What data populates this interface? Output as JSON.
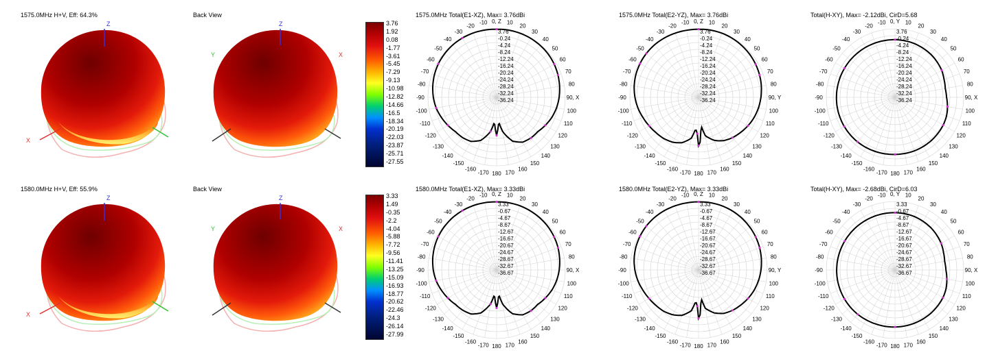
{
  "rows": [
    {
      "front_title": "1575.0MHz H+V, Eff: 64.3%",
      "back_title": "Back View",
      "axis_labels": {
        "x": "X",
        "y": "Y",
        "z": "Z"
      },
      "colorbar_ticks": [
        "3.76",
        "1.92",
        "0.08",
        "-1.77",
        "-3.61",
        "-5.45",
        "-7.29",
        "-9.13",
        "-10.98",
        "-12.82",
        "-14.66",
        "-16.5",
        "-18.34",
        "-20.19",
        "-22.03",
        "-23.87",
        "-25.71",
        "-27.55"
      ],
      "polars": [
        {
          "title": "1575.0MHz Total(E1-XZ), Max= 3.76dBi",
          "max_value": 3.76,
          "ring_labels": [
            "3.76",
            "-0.24",
            "-4.24",
            "-8.24",
            "-12.24",
            "-16.24",
            "-20.24",
            "-24.24",
            "-28.24",
            "-32.24",
            "-36.24"
          ],
          "angle_labels": {
            "0": "0, Z",
            "10": "10",
            "20": "20",
            "30": "30",
            "40": "40",
            "50": "50",
            "60": "60",
            "70": "70",
            "80": "80",
            "90": "90, X",
            "100": "100",
            "110": "110",
            "120": "120",
            "130": "130",
            "140": "140",
            "150": "150",
            "160": "160",
            "170": "170",
            "180": "180",
            "-170": "-170",
            "-160": "-160",
            "-150": "-150",
            "-140": "-140",
            "-130": "-130",
            "-120": "-120",
            "-110": "-110",
            "-100": "-100",
            "-90": "-90",
            "-80": "-80",
            "-70": "-70",
            "-60": "-60",
            "-50": "-50",
            "-40": "-40",
            "-30": "-30",
            "-20": "-20",
            "-10": "-10"
          }
        },
        {
          "title": "1575.0MHz Total(E2-YZ), Max= 3.76dBi",
          "max_value": 3.76,
          "ring_labels": [
            "3.76",
            "-0.24",
            "-4.24",
            "-8.24",
            "-12.24",
            "-16.24",
            "-20.24",
            "-24.24",
            "-28.24",
            "-32.24",
            "-36.24"
          ],
          "angle_labels": {
            "0": "0, Z",
            "10": "10",
            "20": "20",
            "30": "30",
            "40": "40",
            "50": "50",
            "60": "60",
            "70": "70",
            "80": "80",
            "90": "90, Y",
            "100": "100",
            "110": "110",
            "120": "120",
            "130": "130",
            "140": "140",
            "150": "150",
            "160": "160",
            "170": "170",
            "180": "180",
            "-170": "-170",
            "-160": "-160",
            "-150": "-150",
            "-140": "-140",
            "-130": "-130",
            "-120": "-120",
            "-110": "-110",
            "-100": "-100",
            "-90": "-90",
            "-80": "-80",
            "-70": "-70",
            "-60": "-60",
            "-50": "-50",
            "-40": "-40",
            "-30": "-30",
            "-20": "-20",
            "-10": "-10"
          }
        },
        {
          "title": "Total(H-XY), Max= -2.12dBi, CirD=5.68",
          "max_value": -2.12,
          "ring_labels": [
            "3.76",
            "-0.24",
            "-4.24",
            "-8.24",
            "-12.24",
            "-16.24",
            "-20.24",
            "-24.24",
            "-28.24",
            "-32.24",
            "-36.24"
          ],
          "angle_labels": {
            "0": "0, Y",
            "10": "10",
            "20": "20",
            "30": "30",
            "40": "40",
            "50": "50",
            "60": "60",
            "70": "70",
            "80": "80",
            "90": "90, X",
            "100": "100",
            "110": "110",
            "120": "120",
            "130": "130",
            "140": "140",
            "150": "150",
            "160": "160",
            "170": "170",
            "180": "180",
            "-170": "-170",
            "-160": "-160",
            "-150": "-150",
            "-140": "-140",
            "-130": "-130",
            "-120": "-120",
            "-110": "-110",
            "-100": "-100",
            "-90": "-90",
            "-80": "-80",
            "-70": "-70",
            "-60": "-60",
            "-50": "-50",
            "-40": "-40",
            "-30": "-30",
            "-20": "-20",
            "-10": "-10"
          }
        }
      ]
    },
    {
      "front_title": "1580.0MHz H+V, Eff: 55.9%",
      "back_title": "Back View",
      "axis_labels": {
        "x": "X",
        "y": "Y",
        "z": "Z"
      },
      "colorbar_ticks": [
        "3.33",
        "1.49",
        "-0.35",
        "-2.2",
        "-4.04",
        "-5.88",
        "-7.72",
        "-9.56",
        "-11.41",
        "-13.25",
        "-15.09",
        "-16.93",
        "-18.77",
        "-20.62",
        "-22.46",
        "-24.3",
        "-26.14",
        "-27.99"
      ],
      "polars": [
        {
          "title": "1580.0MHz Total(E1-XZ), Max= 3.33dBi",
          "max_value": 3.33,
          "ring_labels": [
            "3.33",
            "-0.67",
            "-4.67",
            "-8.67",
            "-12.67",
            "-16.67",
            "-20.67",
            "-24.67",
            "-28.67",
            "-32.67",
            "-36.67"
          ],
          "angle_labels": {
            "0": "0, Z",
            "10": "10",
            "20": "20",
            "30": "30",
            "40": "40",
            "50": "50",
            "60": "60",
            "70": "70",
            "80": "80",
            "90": "90, X",
            "100": "100",
            "110": "110",
            "120": "120",
            "130": "130",
            "140": "140",
            "150": "150",
            "160": "160",
            "170": "170",
            "180": "180",
            "-170": "-170",
            "-160": "-160",
            "-150": "-150",
            "-140": "-140",
            "-130": "-130",
            "-120": "-120",
            "-110": "-110",
            "-100": "-100",
            "-90": "-90",
            "-80": "-80",
            "-70": "-70",
            "-60": "-60",
            "-50": "-50",
            "-40": "-40",
            "-30": "-30",
            "-20": "-20",
            "-10": "-10"
          }
        },
        {
          "title": "1580.0MHz Total(E2-YZ), Max= 3.33dBi",
          "max_value": 3.33,
          "ring_labels": [
            "3.33",
            "-0.67",
            "-4.67",
            "-8.67",
            "-12.67",
            "-16.67",
            "-20.67",
            "-24.67",
            "-28.67",
            "-32.67",
            "-36.67"
          ],
          "angle_labels": {
            "0": "0, Z",
            "10": "10",
            "20": "20",
            "30": "30",
            "40": "40",
            "50": "50",
            "60": "60",
            "70": "70",
            "80": "80",
            "90": "90, Y",
            "100": "100",
            "110": "110",
            "120": "120",
            "130": "130",
            "140": "140",
            "150": "150",
            "160": "160",
            "170": "170",
            "180": "180",
            "-170": "-170",
            "-160": "-160",
            "-150": "-150",
            "-140": "-140",
            "-130": "-130",
            "-120": "-120",
            "-110": "-110",
            "-100": "-100",
            "-90": "-90",
            "-80": "-80",
            "-70": "-70",
            "-60": "-60",
            "-50": "-50",
            "-40": "-40",
            "-30": "-30",
            "-20": "-20",
            "-10": "-10"
          }
        },
        {
          "title": "Total(H-XY), Max= -2.68dBi, CirD=6.03",
          "max_value": -2.68,
          "ring_labels": [
            "3.33",
            "-0.67",
            "-4.67",
            "-8.67",
            "-12.67",
            "-16.67",
            "-20.67",
            "-24.67",
            "-28.67",
            "-32.67",
            "-36.67"
          ],
          "angle_labels": {
            "0": "0, Y",
            "10": "10",
            "20": "20",
            "30": "30",
            "40": "40",
            "50": "50",
            "60": "60",
            "70": "70",
            "80": "80",
            "90": "90, X",
            "100": "100",
            "110": "110",
            "120": "120",
            "130": "130",
            "140": "140",
            "150": "150",
            "160": "160",
            "170": "170",
            "180": "180",
            "-170": "-170",
            "-160": "-160",
            "-150": "-150",
            "-140": "-140",
            "-130": "-130",
            "-120": "-120",
            "-110": "-110",
            "-100": "-100",
            "-90": "-90",
            "-80": "-80",
            "-70": "-70",
            "-60": "-60",
            "-50": "-50",
            "-40": "-40",
            "-30": "-30",
            "-20": "-20",
            "-10": "-10"
          }
        }
      ]
    }
  ],
  "chart_data": [
    {
      "type": "line",
      "title": "1575.0MHz Total(E1-XZ), Max= 3.76dBi",
      "coordinate_system": "polar",
      "r_range": [
        -36.24,
        3.76
      ],
      "series": [
        {
          "angles_deg": [
            0,
            10,
            20,
            30,
            40,
            50,
            60,
            70,
            80,
            90,
            100,
            110,
            120,
            130,
            140,
            150,
            160,
            170,
            175,
            180,
            185,
            190,
            200,
            210,
            220,
            230,
            240,
            250,
            260,
            270,
            280,
            290,
            300,
            310,
            320,
            330,
            340,
            350
          ],
          "values_dbi": [
            3.5,
            3.6,
            3.6,
            3.5,
            3.3,
            3.0,
            2.5,
            1.8,
            1.0,
            0.2,
            -0.8,
            -2.0,
            -3.5,
            -5.0,
            -5.2,
            -6.0,
            -9.0,
            -16.0,
            -22.0,
            -14.0,
            -22.0,
            -16.0,
            -9.5,
            -6.5,
            -5.5,
            -5.0,
            -3.5,
            -2.0,
            -0.5,
            0.6,
            1.5,
            2.3,
            2.9,
            3.3,
            3.6,
            3.7,
            3.7,
            3.6
          ]
        }
      ]
    },
    {
      "type": "line",
      "title": "1575.0MHz Total(E2-YZ), Max= 3.76dBi",
      "coordinate_system": "polar",
      "r_range": [
        -36.24,
        3.76
      ],
      "series": [
        {
          "angles_deg": [
            0,
            10,
            20,
            30,
            40,
            50,
            60,
            70,
            80,
            90,
            100,
            110,
            120,
            130,
            140,
            150,
            160,
            170,
            175,
            178,
            180,
            182,
            185,
            190,
            200,
            210,
            220,
            230,
            240,
            250,
            260,
            270,
            280,
            290,
            300,
            310,
            320,
            330,
            340,
            350
          ],
          "values_dbi": [
            3.5,
            3.6,
            3.6,
            3.4,
            3.1,
            2.7,
            2.2,
            1.6,
            0.9,
            0.1,
            -0.8,
            -1.8,
            -3.0,
            -4.3,
            -5.5,
            -7.0,
            -9.5,
            -13.5,
            -20.0,
            -10.0,
            -8.0,
            -15.0,
            -18.0,
            -12.0,
            -8.0,
            -6.0,
            -4.8,
            -4.0,
            -3.0,
            -1.8,
            -0.4,
            0.8,
            1.8,
            2.6,
            3.1,
            3.5,
            3.7,
            3.7,
            3.6,
            3.5
          ]
        }
      ]
    },
    {
      "type": "line",
      "title": "Total(H-XY), Max= -2.12dBi, CirD=5.68",
      "coordinate_system": "polar",
      "r_range": [
        -36.24,
        3.76
      ],
      "series": [
        {
          "angles_deg": [
            0,
            20,
            40,
            60,
            70,
            80,
            90,
            100,
            110,
            120,
            140,
            160,
            180,
            200,
            220,
            240,
            260,
            280,
            300,
            320,
            340
          ],
          "values_dbi": [
            -2.6,
            -2.9,
            -3.6,
            -4.8,
            -5.8,
            -6.5,
            -6.2,
            -5.2,
            -4.3,
            -3.8,
            -3.3,
            -3.0,
            -2.9,
            -2.6,
            -2.3,
            -2.15,
            -2.12,
            -2.2,
            -2.3,
            -2.4,
            -2.5
          ]
        }
      ]
    },
    {
      "type": "line",
      "title": "1580.0MHz Total(E1-XZ), Max= 3.33dBi",
      "coordinate_system": "polar",
      "r_range": [
        -36.67,
        3.33
      ],
      "series": [
        {
          "angles_deg": [
            0,
            10,
            20,
            30,
            40,
            50,
            60,
            70,
            80,
            90,
            100,
            110,
            120,
            130,
            140,
            150,
            160,
            170,
            175,
            180,
            185,
            190,
            200,
            210,
            220,
            230,
            240,
            250,
            260,
            270,
            280,
            290,
            300,
            310,
            320,
            330,
            340,
            350
          ],
          "values_dbi": [
            3.1,
            3.2,
            3.2,
            3.0,
            2.8,
            2.5,
            2.0,
            1.4,
            0.6,
            -0.2,
            -1.2,
            -2.4,
            -3.9,
            -5.4,
            -5.6,
            -6.4,
            -9.5,
            -16.5,
            -22.5,
            -14.5,
            -22.5,
            -16.5,
            -10.0,
            -7.0,
            -6.0,
            -5.4,
            -3.9,
            -2.4,
            -0.9,
            0.2,
            1.1,
            1.9,
            2.5,
            2.9,
            3.2,
            3.3,
            3.3,
            3.2
          ]
        }
      ]
    },
    {
      "type": "line",
      "title": "1580.0MHz Total(E2-YZ), Max= 3.33dBi",
      "coordinate_system": "polar",
      "r_range": [
        -36.67,
        3.33
      ],
      "series": [
        {
          "angles_deg": [
            0,
            10,
            20,
            30,
            40,
            50,
            60,
            70,
            80,
            90,
            100,
            110,
            120,
            130,
            140,
            150,
            160,
            170,
            175,
            178,
            180,
            182,
            185,
            190,
            200,
            210,
            220,
            230,
            240,
            250,
            260,
            270,
            280,
            290,
            300,
            310,
            320,
            330,
            340,
            350
          ],
          "values_dbi": [
            3.1,
            3.2,
            3.2,
            3.0,
            2.7,
            2.3,
            1.8,
            1.2,
            0.5,
            -0.3,
            -1.2,
            -2.2,
            -3.4,
            -4.7,
            -5.9,
            -7.4,
            -10.0,
            -14.0,
            -20.5,
            -10.5,
            -8.5,
            -15.5,
            -18.5,
            -12.5,
            -8.5,
            -6.5,
            -5.2,
            -4.4,
            -3.4,
            -2.2,
            -0.8,
            0.4,
            1.4,
            2.2,
            2.7,
            3.1,
            3.3,
            3.3,
            3.2,
            3.1
          ]
        }
      ]
    },
    {
      "type": "line",
      "title": "Total(H-XY), Max= -2.68dBi, CirD=6.03",
      "coordinate_system": "polar",
      "r_range": [
        -36.67,
        3.33
      ],
      "series": [
        {
          "angles_deg": [
            0,
            20,
            40,
            60,
            70,
            80,
            90,
            100,
            110,
            120,
            140,
            160,
            180,
            200,
            220,
            240,
            260,
            280,
            300,
            320,
            340
          ],
          "values_dbi": [
            -3.2,
            -3.5,
            -4.3,
            -5.6,
            -6.6,
            -7.3,
            -7.0,
            -6.0,
            -5.0,
            -4.4,
            -3.9,
            -3.6,
            -3.4,
            -3.2,
            -2.9,
            -2.75,
            -2.68,
            -2.75,
            -2.9,
            -3.0,
            -3.1
          ]
        }
      ]
    }
  ],
  "colors": {
    "pattern_line": "#000000",
    "marker": "#cc33cc",
    "grid": "#d0d0d0",
    "axis_x": "#e03030",
    "axis_y": "#30c030",
    "axis_z": "#3030e0"
  }
}
